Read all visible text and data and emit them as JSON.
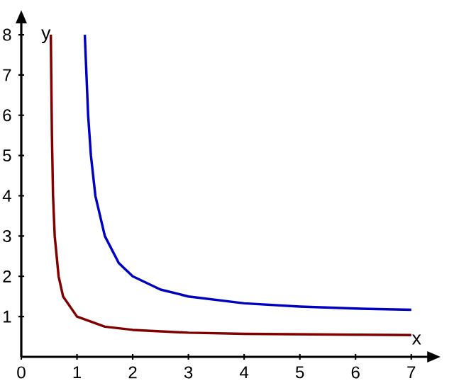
{
  "chart_data": {
    "type": "line",
    "xlabel": "x",
    "ylabel": "y",
    "xlim": [
      0,
      7.3
    ],
    "ylim": [
      0,
      8.3
    ],
    "xticks": [
      0,
      1,
      2,
      3,
      4,
      5,
      6,
      7
    ],
    "yticks": [
      1,
      2,
      3,
      4,
      5,
      6,
      7,
      8
    ],
    "grid": false,
    "marker": "none",
    "line_style": "solid",
    "series": [
      {
        "color": "#0000c0",
        "x": [
          1.14,
          1.2,
          1.25,
          1.33,
          1.5,
          1.75,
          2,
          2.5,
          3,
          4,
          5,
          6,
          7
        ],
        "values": [
          8,
          6,
          5,
          4,
          3,
          2.33,
          2,
          1.67,
          1.5,
          1.33,
          1.25,
          1.2,
          1.17
        ]
      },
      {
        "color": "#800000",
        "x": [
          0.53,
          0.55,
          0.57,
          0.6,
          0.67,
          0.75,
          1,
          1.5,
          2,
          3,
          4,
          5,
          6,
          7
        ],
        "values": [
          8,
          5.5,
          4,
          3,
          2,
          1.5,
          1,
          0.75,
          0.67,
          0.6,
          0.57,
          0.56,
          0.55,
          0.54
        ]
      }
    ]
  }
}
